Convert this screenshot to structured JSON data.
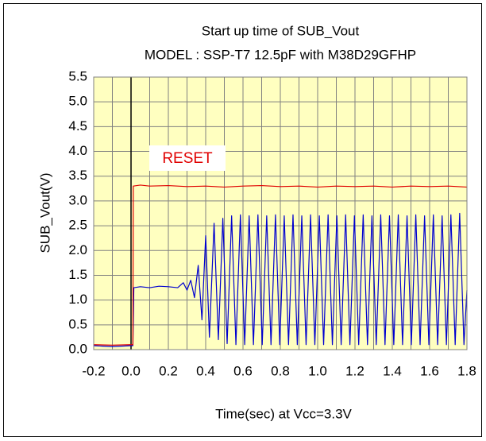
{
  "chart_data": {
    "type": "line",
    "title": "Start up time of SUB_Vout",
    "subtitle": "MODEL : SSP-T7 12.5pF with M38D29GFHP",
    "y_label": "SUB_Vout(V)",
    "x_label": "Time(sec)   at  Vcc=3.3V",
    "xlim": [
      -0.2,
      1.8
    ],
    "ylim": [
      0,
      5.5
    ],
    "xticks": [
      -0.2,
      {
        "value": 0,
        "label": "0.0"
      },
      0.2,
      0.4,
      0.6,
      0.8,
      {
        "value": 1,
        "label": "1.0"
      },
      1.2,
      1.4,
      1.6,
      1.8
    ],
    "x_minor_ticks": [
      -0.1,
      0.1,
      0.3,
      0.5,
      0.7,
      0.9,
      1.1,
      1.3,
      1.5,
      1.7
    ],
    "yticks": [
      {
        "value": 0,
        "label": "0.0"
      },
      0.5,
      {
        "value": 1,
        "label": "1.0"
      },
      1.5,
      {
        "value": 2,
        "label": "2.0"
      },
      2.5,
      {
        "value": 3,
        "label": "3.0"
      },
      3.5,
      {
        "value": 4,
        "label": "4.0"
      },
      4.5,
      {
        "value": 5,
        "label": "5.0"
      },
      5.5
    ],
    "grid": true,
    "series": [
      {
        "name": "RESET",
        "color": "#e00000",
        "x": [
          -0.2,
          -0.1,
          0.0,
          0.01,
          0.012,
          0.05,
          0.1,
          0.2,
          0.3,
          0.4,
          0.5,
          0.6,
          0.7,
          0.8,
          0.9,
          1.0,
          1.1,
          1.2,
          1.3,
          1.4,
          1.5,
          1.6,
          1.7,
          1.8
        ],
        "values": [
          0.1,
          0.09,
          0.1,
          0.1,
          3.3,
          3.32,
          3.3,
          3.31,
          3.29,
          3.3,
          3.28,
          3.3,
          3.31,
          3.29,
          3.3,
          3.28,
          3.3,
          3.29,
          3.3,
          3.28,
          3.3,
          3.29,
          3.3,
          3.28
        ]
      },
      {
        "color": "#0000d0",
        "x": [
          -0.2,
          -0.1,
          0.0,
          0.01,
          0.015,
          0.05,
          0.1,
          0.15,
          0.2,
          0.25,
          0.28,
          0.3,
          0.32,
          0.34,
          0.36,
          0.38,
          0.4,
          0.42,
          0.445,
          0.468,
          0.492,
          0.515,
          0.539,
          0.562,
          0.586,
          0.609,
          0.633,
          0.656,
          0.68,
          0.703,
          0.727,
          0.75,
          0.774,
          0.797,
          0.821,
          0.844,
          0.868,
          0.891,
          0.915,
          0.938,
          0.962,
          0.985,
          1.009,
          1.032,
          1.056,
          1.079,
          1.103,
          1.126,
          1.15,
          1.173,
          1.197,
          1.22,
          1.244,
          1.267,
          1.291,
          1.314,
          1.338,
          1.361,
          1.385,
          1.408,
          1.432,
          1.455,
          1.479,
          1.502,
          1.526,
          1.549,
          1.573,
          1.596,
          1.62,
          1.643,
          1.667,
          1.69,
          1.714,
          1.737,
          1.761,
          1.784,
          1.8
        ],
        "values": [
          0.08,
          0.06,
          0.08,
          0.08,
          1.25,
          1.27,
          1.25,
          1.28,
          1.27,
          1.25,
          1.35,
          1.2,
          1.4,
          1.05,
          1.7,
          0.6,
          2.3,
          0.25,
          2.55,
          0.2,
          2.65,
          0.12,
          2.7,
          0.1,
          2.72,
          0.1,
          2.7,
          0.1,
          2.72,
          0.1,
          2.7,
          0.1,
          2.72,
          0.1,
          2.7,
          0.1,
          2.72,
          0.1,
          2.7,
          0.1,
          2.72,
          0.1,
          2.7,
          0.1,
          2.72,
          0.1,
          2.7,
          0.1,
          2.72,
          0.1,
          2.7,
          0.1,
          2.72,
          0.1,
          2.7,
          0.1,
          2.72,
          0.1,
          2.7,
          0.1,
          2.72,
          0.1,
          2.7,
          0.1,
          2.72,
          0.1,
          2.7,
          0.1,
          2.72,
          0.1,
          2.7,
          0.1,
          2.72,
          0.1,
          2.75,
          0.1,
          1.2
        ]
      }
    ]
  }
}
